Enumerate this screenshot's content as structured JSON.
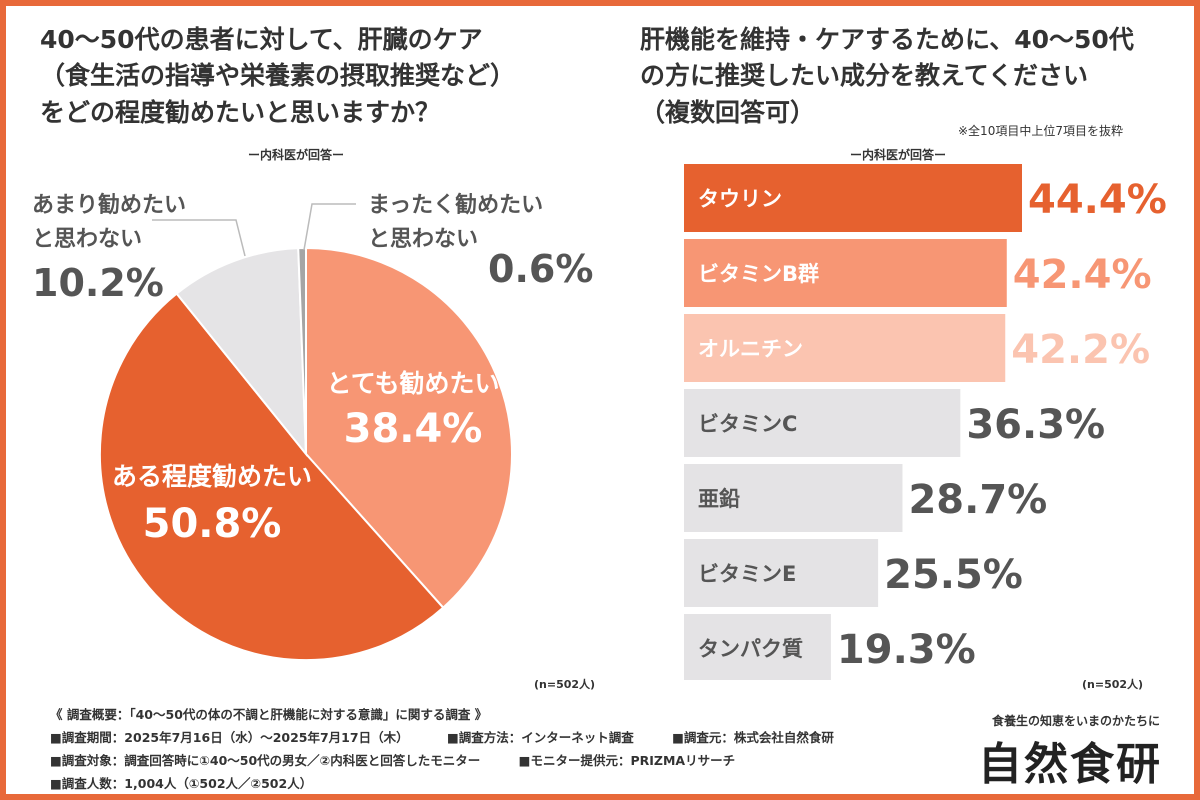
{
  "left": {
    "title_lines": [
      "40〜50代の患者に対して、肝臓のケア",
      "（食生活の指導や栄養素の摂取推奨など）",
      "をどの程度勧めたいと思いますか？"
    ],
    "subtitle": "ー内科医が回答ー",
    "n_label": "(n=502人)"
  },
  "right": {
    "title_lines": [
      "肝機能を維持・ケアするために、40〜50代",
      "の方に推奨したい成分を教えてください",
      "（複数回答可）"
    ],
    "note": "※全10項目中上位7項目を抜粋",
    "subtitle": "ー内科医が回答ー",
    "n_label": "(n=502人)"
  },
  "chart_data": [
    {
      "type": "pie",
      "title": "40〜50代の患者に対して、肝臓のケアをどの程度勧めたいと思いますか？",
      "slices": [
        {
          "label_lines": [
            "とても勧めたい"
          ],
          "value": 38.4,
          "display": "38.4%",
          "color": "#f79674",
          "text_color": "#ffffff"
        },
        {
          "label_lines": [
            "ある程度勧めたい"
          ],
          "value": 50.8,
          "display": "50.8%",
          "color": "#e6612f",
          "text_color": "#ffffff"
        },
        {
          "label_lines": [
            "あまり勧めたい",
            "と思わない"
          ],
          "value": 10.2,
          "display": "10.2%",
          "color": "#e5e4e6",
          "text_color": "#555555"
        },
        {
          "label_lines": [
            "まったく勧めたい",
            "と思わない"
          ],
          "value": 0.6,
          "display": "0.6%",
          "color": "#a5a5a5",
          "text_color": "#555555"
        }
      ]
    },
    {
      "type": "bar",
      "orientation": "horizontal",
      "title": "肝機能を維持・ケアするために、40〜50代の方に推奨したい成分を教えてください（複数回答可）",
      "categories": [
        "タウリン",
        "ビタミンB群",
        "オルニチン",
        "ビタミンC",
        "亜鉛",
        "ビタミンE",
        "タンパク質"
      ],
      "values": [
        44.4,
        42.4,
        42.2,
        36.3,
        28.7,
        25.5,
        19.3
      ],
      "display": [
        "44.4%",
        "42.4%",
        "42.2%",
        "36.3%",
        "28.7%",
        "25.5%",
        "19.3%"
      ],
      "colors": [
        "#e6612f",
        "#f79674",
        "#fbc4b0",
        "#e4e3e5",
        "#e4e3e5",
        "#e4e3e5",
        "#e4e3e5"
      ],
      "label_colors": [
        "#ffffff",
        "#ffffff",
        "#ffffff",
        "#555555",
        "#555555",
        "#555555",
        "#555555"
      ],
      "value_colors": [
        "#e6612f",
        "#f79674",
        "#fbc4b0",
        "#555555",
        "#555555",
        "#555555",
        "#555555"
      ],
      "xlim": [
        0,
        44.4
      ]
    }
  ],
  "footer": {
    "lines": [
      [
        "《 調査概要：「40〜50代の体の不調と肝機能に対する意識」に関する調査 》"
      ],
      [
        "■調査期間：2025年7月16日（水）〜2025年7月17日（木）",
        "■調査方法：インターネット調査",
        "■調査元：株式会社自然食研"
      ],
      [
        "■調査対象：調査回答時に①40〜50代の男女／②内科医と回答したモニター",
        "■モニター提供元：PRIZMAリサーチ"
      ],
      [
        "■調査人数：1,004人（①502人／②502人）"
      ]
    ]
  },
  "brand": {
    "tagline": "食養生の知恵をいまのかたちに",
    "name": "自然食研"
  },
  "colors": {
    "border": "#e8693a",
    "accent": "#e6612f",
    "text": "#333333"
  }
}
